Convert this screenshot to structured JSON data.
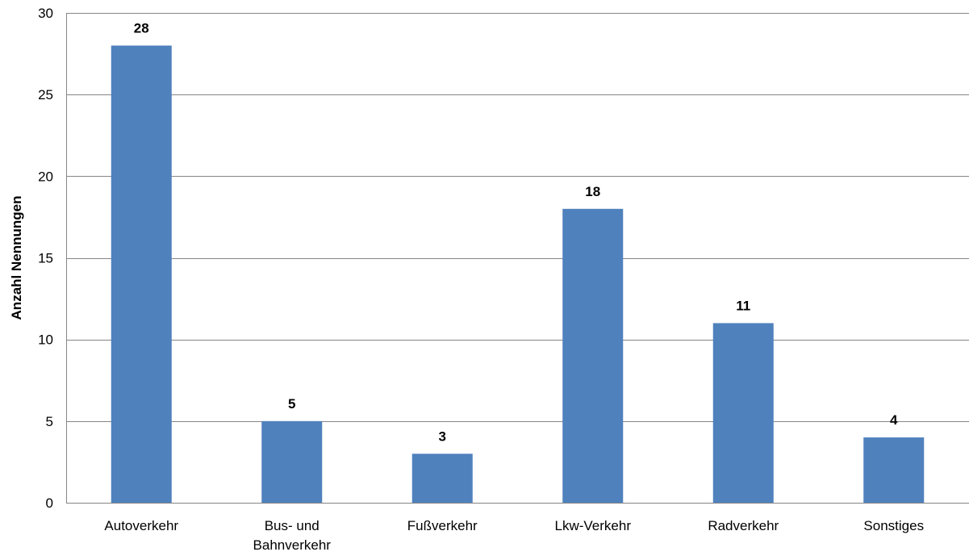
{
  "chart_data": {
    "type": "bar",
    "title": "",
    "xlabel": "",
    "ylabel": "Anzahl Nennungen",
    "categories": [
      [
        "Autoverkehr"
      ],
      [
        "Bus- und",
        "Bahnverkehr"
      ],
      [
        "Fußverkehr"
      ],
      [
        "Lkw-Verkehr"
      ],
      [
        "Radverkehr"
      ],
      [
        "Sonstiges"
      ]
    ],
    "values": [
      28,
      5,
      3,
      18,
      11,
      4
    ],
    "ylim": [
      0,
      30
    ],
    "yticks": [
      0,
      5,
      10,
      15,
      20,
      25,
      30
    ],
    "grid": true,
    "legend": "none",
    "colors": {
      "bar": "#4f81bd",
      "grid": "#868686",
      "axis": "#868686"
    }
  }
}
